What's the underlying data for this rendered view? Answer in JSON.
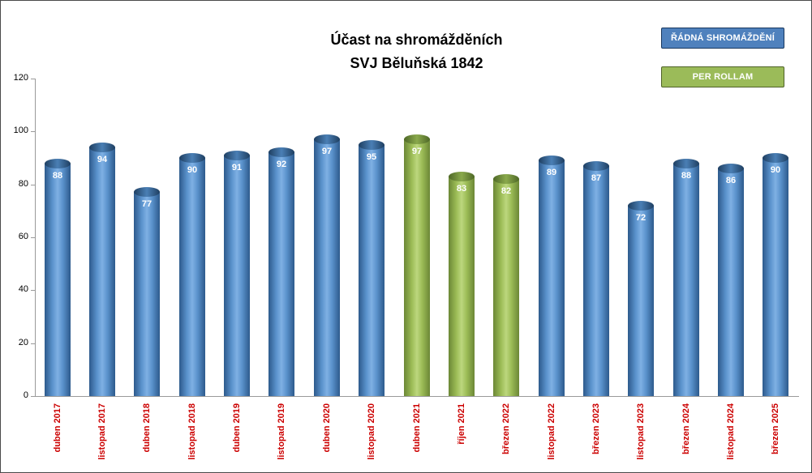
{
  "title": {
    "line1": "Účast na shromážděních",
    "line2": "SVJ Běluňská 1842"
  },
  "legend": {
    "items": [
      {
        "label": "ŘÁDNÁ SHROMÁŽDĚNÍ",
        "color": "#4F81BD",
        "border_color": "#17375E",
        "series": "radna"
      },
      {
        "label": "PER ROLLAM",
        "color": "#9BBB59",
        "border_color": "#4F6228",
        "series": "per_rollam"
      }
    ]
  },
  "chart_data": {
    "type": "bar",
    "title": "Účast na shromážděních SVJ Běluňská 1842",
    "categories": [
      "duben 2017",
      "listopad 2017",
      "duben 2018",
      "listopad 2018",
      "duben 2019",
      "listopad 2019",
      "duben 2020",
      "listopad 2020",
      "duben 2021",
      "říjen 2021",
      "březen 2022",
      "listopad 2022",
      "březen 2023",
      "listopad 2023",
      "březen 2024",
      "listopad 2024",
      "březen 2025"
    ],
    "values": [
      88,
      94,
      77,
      90,
      91,
      92,
      97,
      95,
      97,
      83,
      82,
      89,
      87,
      72,
      88,
      86,
      90
    ],
    "series_per_bar": [
      "radna",
      "radna",
      "radna",
      "radna",
      "radna",
      "radna",
      "radna",
      "radna",
      "per_rollam",
      "per_rollam",
      "per_rollam",
      "radna",
      "radna",
      "radna",
      "radna",
      "radna",
      "radna"
    ],
    "series_names": {
      "radna": "ŘÁDNÁ SHROMÁŽDĚNÍ",
      "per_rollam": "PER ROLLAM"
    },
    "colors": {
      "radna": "#4F81BD",
      "per_rollam": "#9BBB59",
      "category_label": "#CC0000",
      "axis_line": "#9A9A9A"
    },
    "ylim": [
      0,
      120
    ],
    "ytick_step": 20,
    "ytick_labels": [
      "0",
      "20",
      "40",
      "60",
      "80",
      "100",
      "120"
    ],
    "grid": false,
    "data_labels": "inside-top, white bold",
    "legend_position": "top-right"
  }
}
